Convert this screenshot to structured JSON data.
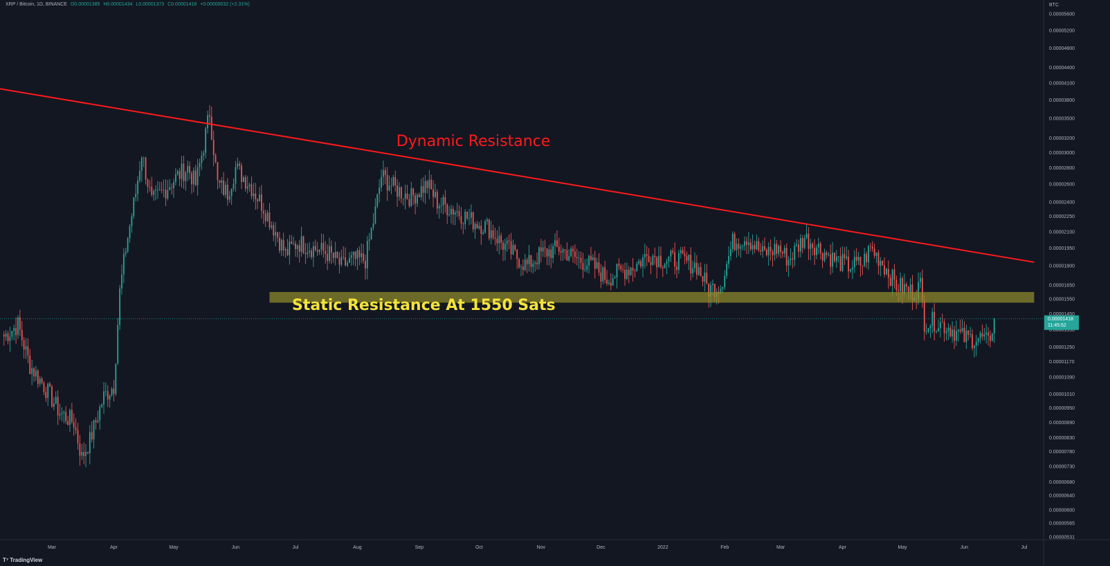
{
  "header": {
    "symbol": "XRP / Bitcoin, 1D, BINANCE",
    "open": "O0.00001385",
    "high": "H0.00001434",
    "low": "L0.00001373",
    "close": "C0.00001418",
    "change": "+0.00000032 (+2.31%)"
  },
  "brand": "TradingView",
  "colors": {
    "background": "#131722",
    "up": "#26a69a",
    "down": "#ef5350",
    "dynamic_resistance": "#ff1a1a",
    "static_zone": "#8f8a2c",
    "static_text": "#f5e33b",
    "price_tag": "#26a69a"
  },
  "chart_data": {
    "type": "candlestick",
    "y_scale": "log",
    "y_unit_label": "BTC",
    "y_ticks": [
      "0.00005600",
      "0.00005200",
      "0.00004800",
      "0.00004400",
      "0.00004100",
      "0.00003800",
      "0.00003500",
      "0.00003200",
      "0.00003000",
      "0.00002800",
      "0.00002600",
      "0.00002400",
      "0.00002250",
      "0.00002100",
      "0.00001950",
      "0.00001800",
      "0.00001650",
      "0.00001550",
      "0.00001450",
      "0.00001350",
      "0.00001250",
      "0.00001170",
      "0.00001090",
      "0.00001010",
      "0.00000950",
      "0.00000890",
      "0.00000830",
      "0.00000780",
      "0.00000730",
      "0.00000680",
      "0.00000640",
      "0.00000600",
      "0.00000565",
      "0.00000531"
    ],
    "x_ticks": [
      "Mar",
      "Apr",
      "May",
      "Jun",
      "Jul",
      "Aug",
      "Sep",
      "Oct",
      "Nov",
      "Dec",
      "2022",
      "Feb",
      "Mar",
      "Apr",
      "May",
      "Jun",
      "Jul"
    ],
    "last_price": "0.00001418",
    "countdown": "11:45:52",
    "price_anchors": [
      [
        "2021-02-05",
        1.31e-05
      ],
      [
        "2021-02-12",
        1.38e-05
      ],
      [
        "2021-02-18",
        1.15e-05
      ],
      [
        "2021-02-25",
        1.05e-05
      ],
      [
        "2021-03-05",
        9.3e-06
      ],
      [
        "2021-03-12",
        8.9e-06
      ],
      [
        "2021-03-16",
        7.6e-06
      ],
      [
        "2021-03-20",
        8.2e-06
      ],
      [
        "2021-03-27",
        1e-05
      ],
      [
        "2021-04-01",
        1.05e-05
      ],
      [
        "2021-04-04",
        1.6e-05
      ],
      [
        "2021-04-07",
        1.95e-05
      ],
      [
        "2021-04-12",
        2.5e-05
      ],
      [
        "2021-04-15",
        3e-05
      ],
      [
        "2021-04-20",
        2.4e-05
      ],
      [
        "2021-04-25",
        2.5e-05
      ],
      [
        "2021-05-03",
        2.7e-05
      ],
      [
        "2021-05-08",
        2.8e-05
      ],
      [
        "2021-05-12",
        2.6e-05
      ],
      [
        "2021-05-16",
        3.1e-05
      ],
      [
        "2021-05-19",
        3.6e-05
      ],
      [
        "2021-05-23",
        2.6e-05
      ],
      [
        "2021-05-28",
        2.5e-05
      ],
      [
        "2021-06-01",
        2.8e-05
      ],
      [
        "2021-06-08",
        2.6e-05
      ],
      [
        "2021-06-15",
        2.35e-05
      ],
      [
        "2021-06-21",
        2.1e-05
      ],
      [
        "2021-06-26",
        1.9e-05
      ],
      [
        "2021-07-02",
        2e-05
      ],
      [
        "2021-07-10",
        1.95e-05
      ],
      [
        "2021-07-18",
        1.9e-05
      ],
      [
        "2021-07-24",
        1.8e-05
      ],
      [
        "2021-07-30",
        1.85e-05
      ],
      [
        "2021-08-05",
        1.85e-05
      ],
      [
        "2021-08-10",
        2.3e-05
      ],
      [
        "2021-08-13",
        2.7e-05
      ],
      [
        "2021-08-20",
        2.55e-05
      ],
      [
        "2021-08-28",
        2.45e-05
      ],
      [
        "2021-09-05",
        2.6e-05
      ],
      [
        "2021-09-10",
        2.4e-05
      ],
      [
        "2021-09-20",
        2.3e-05
      ],
      [
        "2021-09-28",
        2.2e-05
      ],
      [
        "2021-10-05",
        2.15e-05
      ],
      [
        "2021-10-12",
        2e-05
      ],
      [
        "2021-10-18",
        1.9e-05
      ],
      [
        "2021-10-25",
        1.8e-05
      ],
      [
        "2021-11-01",
        1.9e-05
      ],
      [
        "2021-11-10",
        1.95e-05
      ],
      [
        "2021-11-20",
        1.85e-05
      ],
      [
        "2021-11-27",
        1.8e-05
      ],
      [
        "2021-12-04",
        1.7e-05
      ],
      [
        "2021-12-10",
        1.75e-05
      ],
      [
        "2021-12-18",
        1.8e-05
      ],
      [
        "2021-12-25",
        1.9e-05
      ],
      [
        "2022-01-01",
        1.85e-05
      ],
      [
        "2022-01-10",
        1.85e-05
      ],
      [
        "2022-01-18",
        1.8e-05
      ],
      [
        "2022-01-24",
        1.62e-05
      ],
      [
        "2022-01-30",
        1.65e-05
      ],
      [
        "2022-02-05",
        2e-05
      ],
      [
        "2022-02-12",
        2.05e-05
      ],
      [
        "2022-02-20",
        1.9e-05
      ],
      [
        "2022-02-28",
        1.95e-05
      ],
      [
        "2022-03-05",
        1.85e-05
      ],
      [
        "2022-03-13",
        2.05e-05
      ],
      [
        "2022-03-20",
        1.95e-05
      ],
      [
        "2022-03-28",
        1.85e-05
      ],
      [
        "2022-04-04",
        1.8e-05
      ],
      [
        "2022-04-11",
        1.82e-05
      ],
      [
        "2022-04-15",
        1.95e-05
      ],
      [
        "2022-04-20",
        1.85e-05
      ],
      [
        "2022-04-28",
        1.65e-05
      ],
      [
        "2022-05-06",
        1.6e-05
      ],
      [
        "2022-05-10",
        1.65e-05
      ],
      [
        "2022-05-12",
        1.4e-05
      ],
      [
        "2022-05-18",
        1.4e-05
      ],
      [
        "2022-05-25",
        1.36e-05
      ],
      [
        "2022-06-01",
        1.3e-05
      ],
      [
        "2022-06-10",
        1.3e-05
      ],
      [
        "2022-06-13",
        1.27e-05
      ],
      [
        "2022-06-16",
        1.418e-05
      ]
    ],
    "annotations": [
      {
        "type": "trendline",
        "label": "Dynamic Resistance",
        "from": [
          "2021-01-25",
          4.05e-05
        ],
        "to": [
          "2022-07-06",
          1.83e-05
        ]
      },
      {
        "type": "zone",
        "label": "Static Resistance At 1550 Sats",
        "from": "2021-06-18",
        "to": "2022-07-06",
        "low": 1.525e-05,
        "high": 1.6e-05
      }
    ]
  }
}
